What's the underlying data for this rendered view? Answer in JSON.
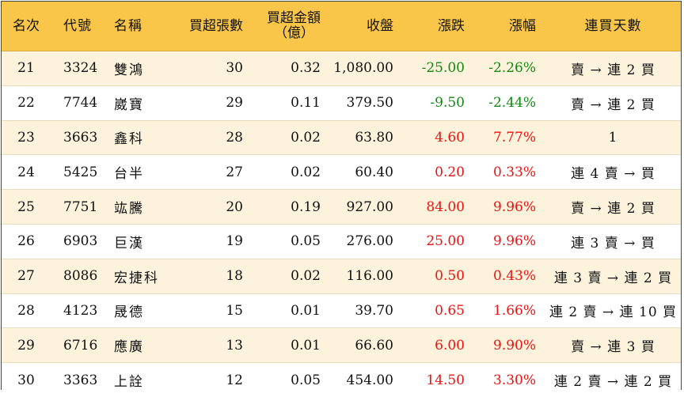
{
  "header": {
    "rank": "名次",
    "code": "代號",
    "name": "名稱",
    "buy_lots": "買超張數",
    "buy_amount_line1": "買超金額",
    "buy_amount_line2": "（億）",
    "close": "收盤",
    "change": "漲跌",
    "pct": "漲幅",
    "streak": "連買天數"
  },
  "colors": {
    "header_bg": "#f9c64a",
    "stripe_bg": "#fdf3dc",
    "up": "#ee1111",
    "down": "#118811"
  },
  "rows": [
    {
      "rank": "21",
      "code": "3324",
      "name": "雙鴻",
      "buy_lots": "30",
      "buy_amount": "0.32",
      "close": "1,080.00",
      "change": "-25.00",
      "pct": "-2.26%",
      "streak": "賣 → 連 2 買",
      "direction": "down"
    },
    {
      "rank": "22",
      "code": "7744",
      "name": "崴寶",
      "buy_lots": "29",
      "buy_amount": "0.11",
      "close": "379.50",
      "change": "-9.50",
      "pct": "-2.44%",
      "streak": "賣 → 連 2 買",
      "direction": "down"
    },
    {
      "rank": "23",
      "code": "3663",
      "name": "鑫科",
      "buy_lots": "28",
      "buy_amount": "0.02",
      "close": "63.80",
      "change": "4.60",
      "pct": "7.77%",
      "streak": "1",
      "direction": "up"
    },
    {
      "rank": "24",
      "code": "5425",
      "name": "台半",
      "buy_lots": "27",
      "buy_amount": "0.02",
      "close": "60.40",
      "change": "0.20",
      "pct": "0.33%",
      "streak": "連 4 賣 → 買",
      "direction": "up"
    },
    {
      "rank": "25",
      "code": "7751",
      "name": "竑騰",
      "buy_lots": "20",
      "buy_amount": "0.19",
      "close": "927.00",
      "change": "84.00",
      "pct": "9.96%",
      "streak": "賣 → 連 2 買",
      "direction": "up"
    },
    {
      "rank": "26",
      "code": "6903",
      "name": "巨漢",
      "buy_lots": "19",
      "buy_amount": "0.05",
      "close": "276.00",
      "change": "25.00",
      "pct": "9.96%",
      "streak": "連 3 賣 → 買",
      "direction": "up"
    },
    {
      "rank": "27",
      "code": "8086",
      "name": "宏捷科",
      "buy_lots": "18",
      "buy_amount": "0.02",
      "close": "116.00",
      "change": "0.50",
      "pct": "0.43%",
      "streak": "連 3 賣 → 連 2 買",
      "direction": "up"
    },
    {
      "rank": "28",
      "code": "4123",
      "name": "晟德",
      "buy_lots": "15",
      "buy_amount": "0.01",
      "close": "39.70",
      "change": "0.65",
      "pct": "1.66%",
      "streak": "連 2 賣 → 連 10 買",
      "direction": "up"
    },
    {
      "rank": "29",
      "code": "6716",
      "name": "應廣",
      "buy_lots": "13",
      "buy_amount": "0.01",
      "close": "66.60",
      "change": "6.00",
      "pct": "9.90%",
      "streak": "賣 → 連 3 買",
      "direction": "up"
    },
    {
      "rank": "30",
      "code": "3363",
      "name": "上詮",
      "buy_lots": "12",
      "buy_amount": "0.05",
      "close": "454.00",
      "change": "14.50",
      "pct": "3.30%",
      "streak": "連 2 賣 → 連 2 買",
      "direction": "up"
    }
  ]
}
